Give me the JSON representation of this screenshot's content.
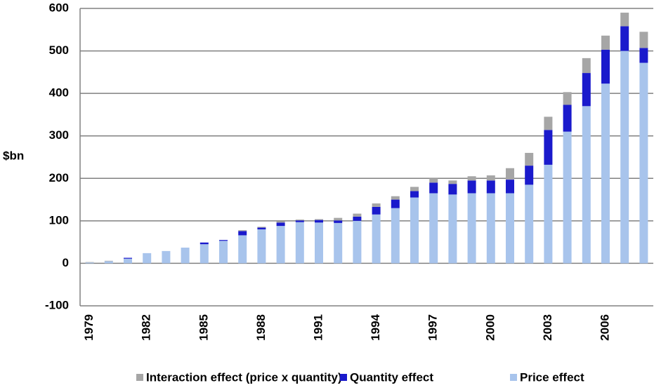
{
  "chart_data": {
    "type": "bar",
    "stacked": true,
    "y_label": "$bn",
    "categories": [
      "1979",
      null,
      null,
      "1982",
      null,
      null,
      "1985",
      null,
      null,
      "1988",
      null,
      null,
      "1991",
      null,
      null,
      "1994",
      null,
      null,
      "1997",
      null,
      null,
      "2000",
      null,
      null,
      "2003",
      null,
      null,
      "2006",
      null,
      null
    ],
    "series": [
      {
        "name": "Interaction effect (price x quantity)",
        "color": "#a6a6a6",
        "values": [
          1,
          1,
          0,
          0,
          0,
          0,
          0,
          0,
          2,
          2,
          3,
          2,
          2,
          6,
          7,
          8,
          8,
          10,
          10,
          8,
          10,
          12,
          27,
          30,
          31,
          30,
          35,
          33,
          32,
          38
        ]
      },
      {
        "name": "Quantity effect",
        "color": "#1a1acc",
        "values": [
          0,
          0,
          2,
          0,
          0,
          0,
          4,
          2,
          10,
          4,
          8,
          4,
          6,
          6,
          10,
          18,
          20,
          15,
          25,
          25,
          30,
          30,
          32,
          45,
          82,
          63,
          78,
          80,
          58,
          35
        ]
      },
      {
        "name": "Price effect",
        "color": "#a8c4ec",
        "values": [
          2,
          5,
          11,
          24,
          29,
          37,
          45,
          53,
          66,
          80,
          88,
          97,
          96,
          95,
          100,
          115,
          130,
          155,
          165,
          162,
          165,
          165,
          165,
          185,
          232,
          310,
          370,
          423,
          500,
          472
        ]
      }
    ],
    "ylim": [
      -100,
      600
    ],
    "yticks": [
      -100,
      0,
      100,
      200,
      300,
      400,
      500,
      600
    ],
    "grid": true
  }
}
